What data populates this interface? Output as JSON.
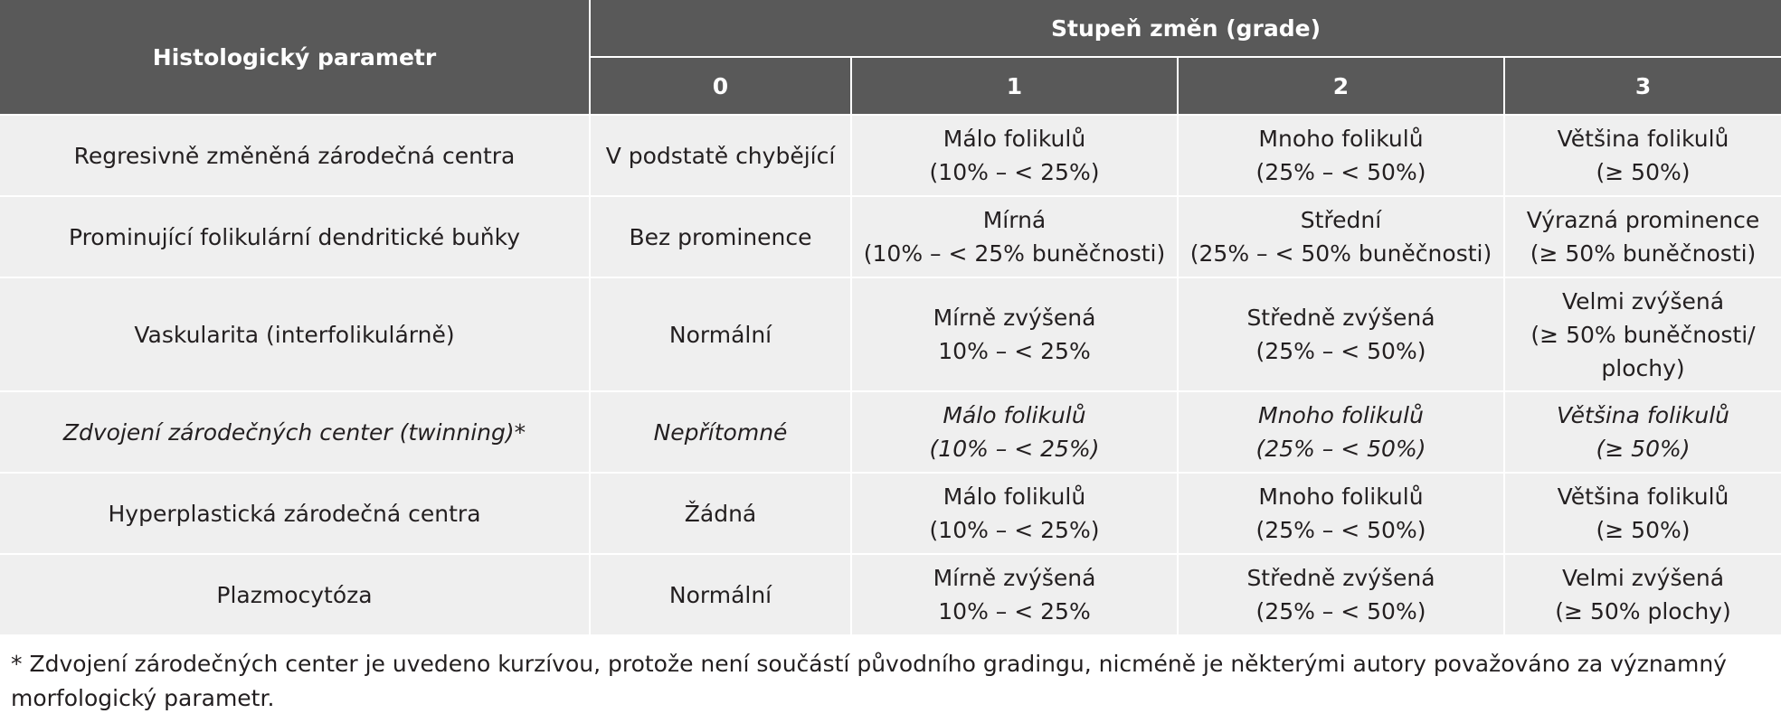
{
  "table": {
    "param_header": "Histologický parametr",
    "group_header": "Stupeň změn (grade)",
    "grades": [
      "0",
      "1",
      "2",
      "3"
    ],
    "rows": [
      {
        "param": "Regresivně změněná zárodečná centra",
        "g0": [
          "V podstatě chybějící"
        ],
        "g1": [
          "Málo folikulů",
          "(10% – < 25%)"
        ],
        "g2": [
          "Mnoho folikulů",
          "(25% – < 50%)"
        ],
        "g3": [
          "Většina folikulů",
          "(≥ 50%)"
        ]
      },
      {
        "param": "Prominující folikulární dendritické buňky",
        "g0": [
          "Bez prominence"
        ],
        "g1": [
          "Mírná",
          "(10% – < 25% buněčnosti)"
        ],
        "g2": [
          "Střední",
          "(25% – < 50% buněčnosti)"
        ],
        "g3": [
          "Výrazná prominence",
          "(≥ 50% buněčnosti)"
        ]
      },
      {
        "param": "Vaskularita (interfolikulárně)",
        "g0": [
          "Normální"
        ],
        "g1": [
          "Mírně zvýšená",
          "10% – < 25%"
        ],
        "g2": [
          "Středně zvýšená",
          "(25% – < 50%)"
        ],
        "g3": [
          "Velmi zvýšená",
          "(≥ 50% buněčnosti/",
          "plochy)"
        ]
      },
      {
        "param": "Zdvojení zárodečných center (twinning)*",
        "g0": [
          "Nepřítomné"
        ],
        "g1": [
          "Málo folikulů",
          "(10% – < 25%)"
        ],
        "g2": [
          "Mnoho folikulů",
          "(25% – < 50%)"
        ],
        "g3": [
          "Většina folikulů",
          "(≥ 50%)"
        ]
      },
      {
        "param": "Hyperplastická zárodečná centra",
        "g0": [
          "Žádná"
        ],
        "g1": [
          "Málo folikulů",
          "(10% – < 25%)"
        ],
        "g2": [
          "Mnoho folikulů",
          "(25% – < 50%)"
        ],
        "g3": [
          "Většina folikulů",
          "(≥ 50%)"
        ]
      },
      {
        "param": "Plazmocytóza",
        "g0": [
          "Normální"
        ],
        "g1": [
          "Mírně zvýšená",
          "10% – < 25%"
        ],
        "g2": [
          "Středně zvýšená",
          "(25% – < 50%)"
        ],
        "g3": [
          "Velmi zvýšená",
          "(≥ 50% plochy)"
        ]
      }
    ]
  },
  "footnote": "* Zdvojení zárodečných center je uvedeno kurzívou, protože není součástí původního gradingu, nicméně je některými autory považováno za významný morfologický parametr."
}
